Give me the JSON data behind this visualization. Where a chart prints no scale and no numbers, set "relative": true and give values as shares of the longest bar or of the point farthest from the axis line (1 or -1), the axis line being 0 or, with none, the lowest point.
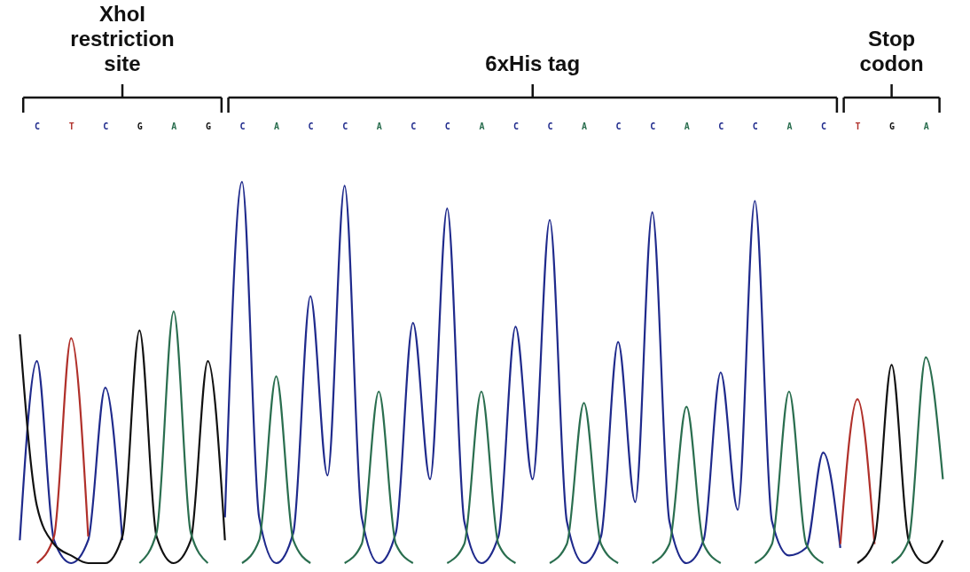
{
  "chart_data": {
    "type": "line",
    "relative": true,
    "legend": false,
    "grid": false,
    "categories": [
      null,
      "C",
      null,
      "T",
      null,
      "C",
      null,
      "G",
      null,
      "A",
      null,
      "G",
      null,
      "C",
      null,
      "A",
      null,
      "C",
      null,
      "C",
      null,
      "A",
      null,
      "C",
      null,
      "C",
      null,
      "A",
      null,
      "C",
      null,
      "C",
      null,
      "A",
      null,
      "C",
      null,
      "C",
      null,
      "A",
      null,
      "C",
      null,
      "C",
      null,
      "A",
      null,
      "C",
      null,
      "T",
      null,
      "G",
      null,
      "A",
      null
    ],
    "series": [
      {
        "color": "#1f2a8c",
        "values": [
          0.06,
          0.53,
          0.06,
          0,
          0.06,
          0.46,
          0.06,
          null,
          null,
          null,
          null,
          null,
          0.12,
          1,
          0.12,
          0,
          0.08,
          0.7,
          0.23,
          0.99,
          0.12,
          0,
          0.08,
          0.63,
          0.22,
          0.93,
          0.11,
          0,
          0.07,
          0.62,
          0.22,
          0.9,
          0.11,
          0,
          0.07,
          0.58,
          0.16,
          0.92,
          0.11,
          0,
          0.06,
          0.5,
          0.14,
          0.95,
          0.11,
          0.02,
          0.04,
          0.29,
          0.04,
          null,
          null,
          null,
          null,
          null,
          null
        ]
      },
      {
        "color": "#b0302a",
        "values": [
          null,
          0,
          0.07,
          0.59,
          0.07,
          null,
          null,
          null,
          null,
          null,
          null,
          null,
          null,
          null,
          null,
          null,
          null,
          null,
          null,
          null,
          null,
          null,
          null,
          null,
          null,
          null,
          null,
          null,
          null,
          null,
          null,
          null,
          null,
          null,
          null,
          null,
          null,
          null,
          null,
          null,
          null,
          null,
          null,
          null,
          null,
          null,
          null,
          null,
          0.05,
          0.43,
          0.05,
          null,
          null,
          null,
          null
        ]
      },
      {
        "color": "#111111",
        "values": [
          0.6,
          0.15,
          0.05,
          0.02,
          0,
          0,
          0.07,
          0.61,
          0.07,
          0,
          0.06,
          0.53,
          0.06,
          null,
          null,
          null,
          null,
          null,
          null,
          null,
          null,
          null,
          null,
          null,
          null,
          null,
          null,
          null,
          null,
          null,
          null,
          null,
          null,
          null,
          null,
          null,
          null,
          null,
          null,
          null,
          null,
          null,
          null,
          null,
          null,
          null,
          null,
          null,
          null,
          0,
          0.06,
          0.52,
          0.06,
          0,
          0.06
        ]
      },
      {
        "color": "#2a6e4f",
        "values": [
          null,
          null,
          null,
          null,
          null,
          null,
          null,
          0,
          0.08,
          0.66,
          0.08,
          0,
          null,
          0,
          0.06,
          0.49,
          0.06,
          0,
          null,
          0,
          0.05,
          0.45,
          0.05,
          0,
          null,
          0,
          0.05,
          0.45,
          0.05,
          0,
          null,
          0,
          0.05,
          0.42,
          0.05,
          0,
          null,
          0,
          0.05,
          0.41,
          0.05,
          0,
          null,
          0,
          0.05,
          0.45,
          0.05,
          0,
          null,
          null,
          null,
          0,
          0.06,
          0.54,
          0.22
        ]
      }
    ],
    "annotations": [
      "XhoI restriction site",
      "6xHis tag",
      "Stop codon"
    ]
  }
}
